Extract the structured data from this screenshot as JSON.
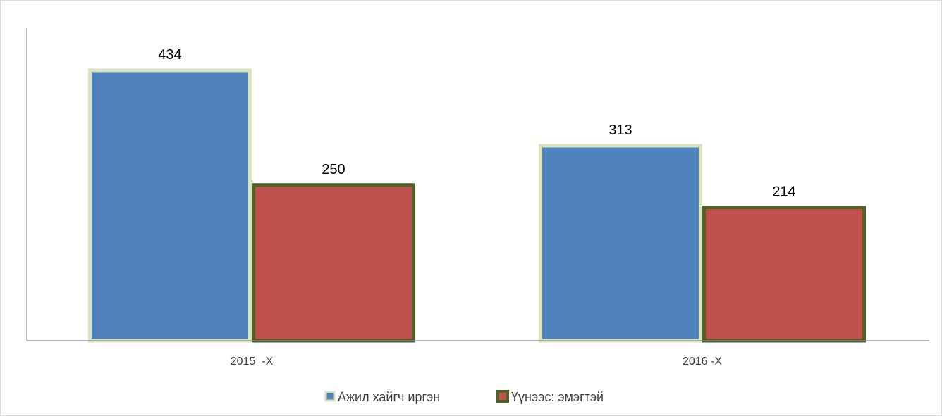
{
  "chart_data": {
    "type": "bar",
    "title": "",
    "xlabel": "",
    "ylabel": "",
    "categories": [
      "2015  -X",
      "2016 -X"
    ],
    "series": [
      {
        "name": "Ажил хайгч иргэн",
        "values": [
          434,
          313
        ],
        "fill": "#4f81bd",
        "border": "#d7e4bd"
      },
      {
        "name": "Үүнээс: эмэгтэй",
        "values": [
          250,
          214
        ],
        "fill": "#c0504d",
        "border": "#4f6228"
      }
    ],
    "ylim": [
      0,
      500
    ],
    "grid": false,
    "legend_position": "bottom",
    "data_labels": true
  }
}
